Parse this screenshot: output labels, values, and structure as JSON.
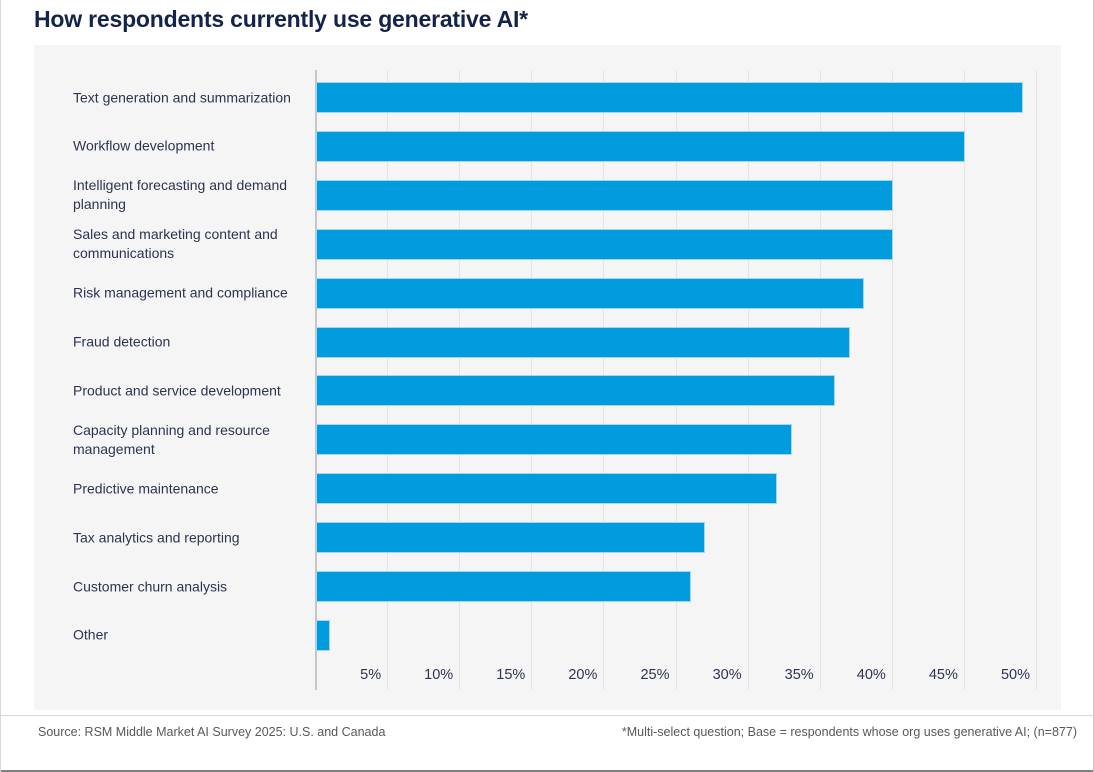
{
  "page": {
    "title": "How respondents currently use generative AI*"
  },
  "chart_data": {
    "type": "bar",
    "orientation": "horizontal",
    "title": "How respondents currently use generative AI*",
    "categories": [
      "Text generation and summarization",
      "Workflow development",
      "Intelligent forecasting and demand planning",
      "Sales and marketing content and communications",
      "Risk management and compliance",
      "Fraud detection",
      "Product and service development",
      "Capacity planning and resource management",
      "Predictive maintenance",
      "Tax analytics and reporting",
      "Customer churn analysis",
      "Other"
    ],
    "values": [
      49,
      45,
      40,
      40,
      38,
      37,
      36,
      33,
      32,
      27,
      26,
      1
    ],
    "unit": "%",
    "x_ticks": [
      "5%",
      "10%",
      "15%",
      "20%",
      "25%",
      "30%",
      "35%",
      "40%",
      "45%",
      "50%"
    ],
    "xlim": [
      0,
      51.7
    ],
    "grid": true,
    "legend": "none"
  },
  "footer": {
    "source": "Source: RSM Middle Market AI Survey 2025: U.S. and Canada",
    "note": "*Multi-select question; Base = respondents whose org uses generative AI; (n=877)"
  },
  "colors": {
    "bar": "#009CDE",
    "panel_bg": "#F5F5F6",
    "gridline": "#E4E4E6",
    "axis_line": "#C6C6CA",
    "title_text": "#14234B",
    "label_text": "#2B3550",
    "tick_text": "#2B3550",
    "footer_text": "#595959",
    "bottom_rule": "#7F7F7F"
  }
}
